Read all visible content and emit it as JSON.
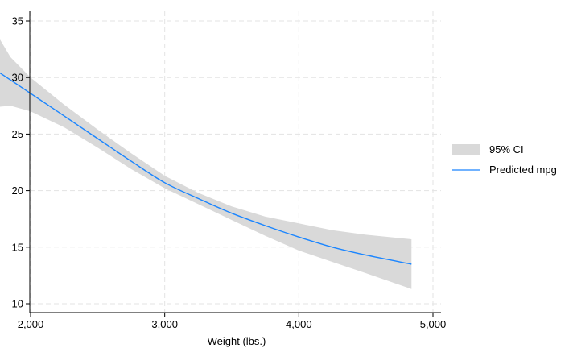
{
  "chart_data": {
    "type": "line",
    "title": "",
    "xlabel": "Weight (lbs.)",
    "ylabel": "",
    "xlim": [
      1760,
      4840
    ],
    "ylim": [
      10,
      35
    ],
    "xticks": [
      2000,
      3000,
      4000,
      5000
    ],
    "xtick_labels": [
      "2,000",
      "3,000",
      "4,000",
      "5,000"
    ],
    "yticks": [
      10,
      15,
      20,
      25,
      30,
      35
    ],
    "ytick_labels": [
      "10",
      "15",
      "20",
      "25",
      "30",
      "35"
    ],
    "grid": true,
    "legend_position": "right",
    "colors": {
      "line": "#1a85ff",
      "band": "#d9d9d9",
      "grid": "#e3e3e3"
    },
    "series": [
      {
        "name": "Predicted mpg",
        "type": "line",
        "x": [
          1760,
          2000,
          2250,
          2500,
          2750,
          3000,
          3250,
          3500,
          3750,
          4000,
          4250,
          4500,
          4840
        ],
        "y": [
          30.5,
          28.6,
          26.6,
          24.6,
          22.6,
          20.7,
          19.3,
          18.0,
          16.9,
          15.9,
          15.0,
          14.3,
          13.5
        ]
      },
      {
        "name": "95% CI",
        "type": "band",
        "x": [
          1760,
          1850,
          2000,
          2250,
          2500,
          2750,
          3000,
          3250,
          3500,
          3750,
          4000,
          4250,
          4500,
          4840
        ],
        "lower": [
          27.4,
          27.5,
          27.0,
          25.6,
          23.8,
          21.9,
          20.2,
          18.8,
          17.4,
          16.0,
          14.7,
          13.7,
          12.7,
          11.3
        ],
        "upper": [
          33.6,
          31.8,
          30.0,
          27.6,
          25.4,
          23.3,
          21.3,
          19.8,
          18.6,
          17.7,
          17.1,
          16.5,
          16.1,
          15.7
        ]
      }
    ]
  }
}
